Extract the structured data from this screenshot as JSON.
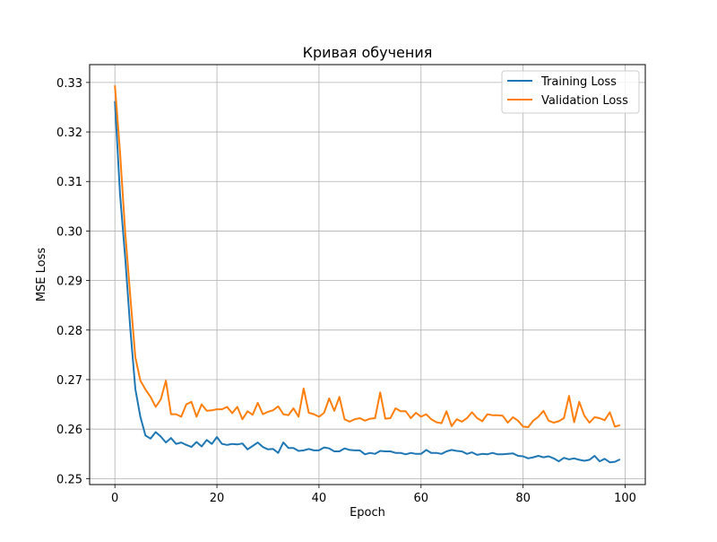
{
  "chart_data": {
    "type": "line",
    "title": "Кривая обучения",
    "xlabel": "Epoch",
    "ylabel": "MSE Loss",
    "xlim": [
      -4.95,
      103.95
    ],
    "ylim": [
      0.2488,
      0.3336
    ],
    "xticks": [
      0,
      20,
      40,
      60,
      80,
      100
    ],
    "yticks": [
      0.25,
      0.26,
      0.27,
      0.28,
      0.29,
      0.3,
      0.31,
      0.32,
      0.33
    ],
    "ytick_labels": [
      "0.25",
      "0.26",
      "0.27",
      "0.28",
      "0.29",
      "0.30",
      "0.31",
      "0.32",
      "0.33"
    ],
    "grid": true,
    "legend_position": "upper right",
    "series": [
      {
        "name": "Training Loss",
        "color": "#1f77b4",
        "x_start": 0,
        "values": [
          0.3262,
          0.3075,
          0.2948,
          0.2805,
          0.2681,
          0.2625,
          0.2587,
          0.2581,
          0.2594,
          0.2585,
          0.2573,
          0.2582,
          0.257,
          0.2573,
          0.2568,
          0.2564,
          0.2574,
          0.2565,
          0.2578,
          0.257,
          0.2584,
          0.257,
          0.2568,
          0.257,
          0.2569,
          0.2571,
          0.2559,
          0.2566,
          0.2573,
          0.2564,
          0.2559,
          0.256,
          0.2552,
          0.2573,
          0.2562,
          0.2562,
          0.2556,
          0.2557,
          0.256,
          0.2557,
          0.2557,
          0.2563,
          0.2561,
          0.2555,
          0.2555,
          0.2561,
          0.2558,
          0.2557,
          0.2557,
          0.2549,
          0.2552,
          0.255,
          0.2556,
          0.2555,
          0.2555,
          0.2552,
          0.2552,
          0.2549,
          0.2552,
          0.255,
          0.255,
          0.2558,
          0.2552,
          0.2552,
          0.255,
          0.2555,
          0.2558,
          0.2556,
          0.2555,
          0.255,
          0.2553,
          0.2548,
          0.255,
          0.2549,
          0.2552,
          0.2549,
          0.2549,
          0.255,
          0.2551,
          0.2546,
          0.2545,
          0.2541,
          0.2543,
          0.2546,
          0.2543,
          0.2545,
          0.2541,
          0.2535,
          0.2542,
          0.2539,
          0.2541,
          0.2538,
          0.2536,
          0.2538,
          0.2546,
          0.2535,
          0.254,
          0.2533,
          0.2534,
          0.2539
        ]
      },
      {
        "name": "Validation Loss",
        "color": "#ff7f0e",
        "x_start": 0,
        "values": [
          0.3294,
          0.316,
          0.3,
          0.287,
          0.2745,
          0.2698,
          0.268,
          0.2665,
          0.2645,
          0.266,
          0.2698,
          0.263,
          0.263,
          0.2625,
          0.265,
          0.2655,
          0.2625,
          0.265,
          0.2637,
          0.2638,
          0.264,
          0.264,
          0.2645,
          0.2632,
          0.2645,
          0.262,
          0.2636,
          0.2629,
          0.2653,
          0.263,
          0.2635,
          0.2638,
          0.2646,
          0.263,
          0.2628,
          0.2642,
          0.2625,
          0.2682,
          0.2633,
          0.263,
          0.2625,
          0.2633,
          0.2662,
          0.2637,
          0.2665,
          0.262,
          0.2615,
          0.262,
          0.2622,
          0.2617,
          0.2621,
          0.2622,
          0.2674,
          0.2621,
          0.2622,
          0.2642,
          0.2636,
          0.2636,
          0.2622,
          0.2633,
          0.2625,
          0.263,
          0.262,
          0.2614,
          0.2612,
          0.2636,
          0.2606,
          0.262,
          0.2615,
          0.2622,
          0.2634,
          0.2622,
          0.2616,
          0.263,
          0.2628,
          0.2628,
          0.2627,
          0.2613,
          0.2624,
          0.2617,
          0.2605,
          0.2604,
          0.2617,
          0.2625,
          0.2637,
          0.2617,
          0.2613,
          0.2616,
          0.2622,
          0.2667,
          0.2614,
          0.2655,
          0.2627,
          0.2613,
          0.2624,
          0.2622,
          0.2618,
          0.2634,
          0.2605,
          0.2608
        ]
      }
    ]
  }
}
